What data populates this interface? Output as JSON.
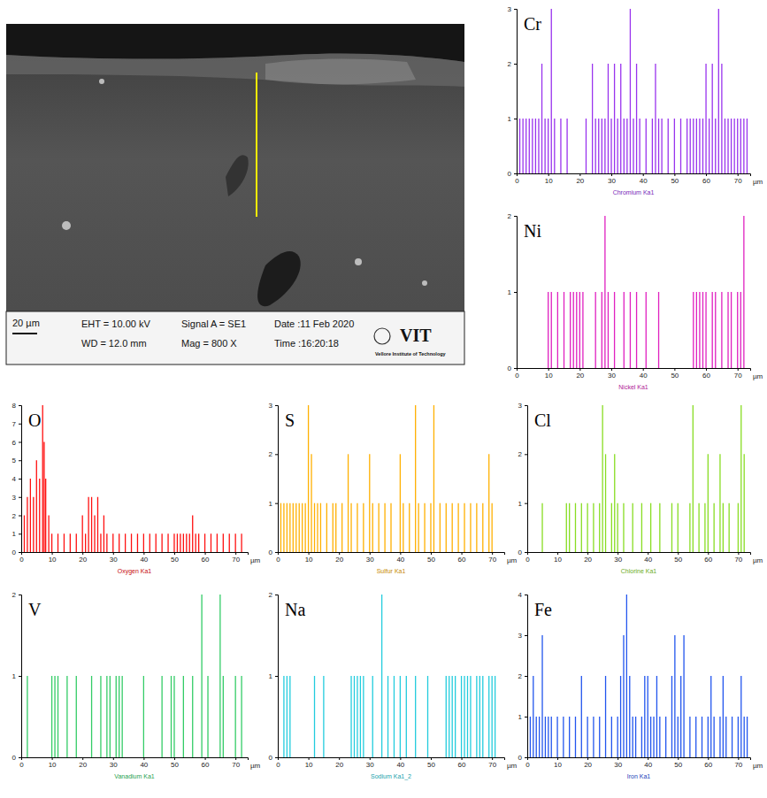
{
  "sem_image": {
    "scale_bar": "20 µm",
    "eht": "EHT = 10.00 kV",
    "wd": "WD = 12.0 mm",
    "signal": "Signal A = SE1",
    "mag": "Mag =  800 X",
    "date": "Date :11 Feb 2020",
    "time": "Time :16:20:18",
    "logo": "VIT",
    "institute": "Vellore Institute of Technology"
  },
  "chart_data": [
    {
      "type": "bar",
      "label": "Cr",
      "x_label": "Chromium Ka1",
      "x_unit": "µm",
      "color": "#9933ee",
      "x": [
        1,
        2,
        3,
        4,
        5,
        6,
        7,
        8,
        9,
        10,
        11,
        12,
        14,
        16,
        22,
        24,
        25,
        26,
        27,
        28,
        29,
        30,
        31,
        32,
        33,
        34,
        35,
        36,
        37,
        38,
        39,
        41,
        43,
        44,
        45,
        46,
        48,
        50,
        52,
        54,
        55,
        56,
        57,
        58,
        59,
        60,
        61,
        62,
        63,
        64,
        65,
        66,
        67,
        68,
        69,
        70,
        71,
        72,
        73
      ],
      "values": [
        1,
        1,
        1,
        1,
        1,
        1,
        1,
        2,
        1,
        1,
        3,
        1,
        1,
        1,
        1,
        2,
        1,
        1,
        1,
        1,
        2,
        1,
        2,
        1,
        2,
        1,
        1,
        3,
        1,
        2,
        1,
        1,
        1,
        2,
        1,
        1,
        1,
        1,
        1,
        1,
        1,
        1,
        1,
        1,
        1,
        2,
        1,
        2,
        1,
        3,
        2,
        1,
        1,
        1,
        1,
        1,
        1,
        1,
        1
      ],
      "xlim": [
        0,
        74
      ],
      "xticks": [
        0,
        10,
        20,
        30,
        40,
        50,
        60,
        70
      ],
      "ylim": [
        0,
        3
      ],
      "yticks": [
        0,
        1,
        2,
        3
      ]
    },
    {
      "type": "bar",
      "label": "Ni",
      "x_label": "Nickel Ka1",
      "x_unit": "µm",
      "color": "#e020c0",
      "x": [
        10,
        11,
        13,
        15,
        17,
        18,
        19,
        20,
        21,
        25,
        27,
        28,
        29,
        31,
        34,
        36,
        38,
        41,
        45,
        56,
        57,
        58,
        59,
        60,
        62,
        63,
        65,
        67,
        68,
        70,
        71,
        72
      ],
      "values": [
        1,
        1,
        1,
        1,
        1,
        1,
        1,
        1,
        1,
        1,
        1,
        2,
        1,
        1,
        1,
        1,
        1,
        1,
        1,
        1,
        1,
        1,
        1,
        1,
        1,
        1,
        1,
        1,
        1,
        1,
        1,
        2
      ],
      "xlim": [
        0,
        74
      ],
      "xticks": [
        0,
        10,
        20,
        30,
        40,
        50,
        60,
        70
      ],
      "ylim": [
        0,
        2
      ],
      "yticks": [
        0,
        1,
        2
      ]
    },
    {
      "type": "bar",
      "label": "O",
      "x_label": "Oxygen Ka1",
      "x_unit": "µm",
      "color": "#ff1010",
      "x": [
        1,
        2,
        3,
        4,
        5,
        6,
        7,
        7.5,
        8,
        9,
        10,
        12,
        14,
        16,
        18,
        20,
        21,
        22,
        23,
        24,
        25,
        26,
        27,
        28,
        30,
        32,
        34,
        36,
        38,
        40,
        42,
        44,
        46,
        48,
        50,
        51,
        52,
        53,
        54,
        55,
        56,
        57,
        58,
        60,
        62,
        64,
        66,
        68,
        70,
        72
      ],
      "values": [
        2,
        3,
        4,
        3,
        5,
        4,
        8,
        6,
        4,
        2,
        1,
        1,
        1,
        1,
        1,
        2,
        1,
        3,
        3,
        2,
        3,
        1,
        2,
        1,
        1,
        1,
        1,
        1,
        1,
        1,
        1,
        1,
        1,
        1,
        1,
        1,
        1,
        1,
        1,
        1,
        2,
        1,
        1,
        1,
        1,
        1,
        1,
        1,
        1,
        1
      ],
      "xlim": [
        0,
        74
      ],
      "xticks": [
        0,
        10,
        20,
        30,
        40,
        50,
        60,
        70
      ],
      "ylim": [
        0,
        8
      ],
      "yticks": [
        0,
        1,
        2,
        3,
        4,
        5,
        6,
        7,
        8
      ]
    },
    {
      "type": "bar",
      "label": "S",
      "x_label": "Sulfur Ka1",
      "x_unit": "µm",
      "color": "#ffb000",
      "x": [
        1,
        2,
        3,
        4,
        5,
        6,
        7,
        8,
        9,
        10,
        11,
        12,
        13,
        14,
        16,
        18,
        19,
        21,
        23,
        24,
        26,
        28,
        30,
        31,
        33,
        35,
        37,
        40,
        41,
        43,
        45,
        46,
        48,
        50,
        51,
        53,
        55,
        57,
        59,
        61,
        63,
        65,
        67,
        69,
        70
      ],
      "values": [
        1,
        1,
        1,
        1,
        1,
        1,
        1,
        1,
        1,
        3,
        2,
        1,
        1,
        1,
        1,
        1,
        1,
        1,
        2,
        1,
        1,
        1,
        2,
        1,
        1,
        1,
        1,
        2,
        1,
        1,
        3,
        1,
        1,
        1,
        3,
        1,
        1,
        1,
        1,
        1,
        1,
        1,
        1,
        2,
        1
      ],
      "xlim": [
        0,
        74
      ],
      "xticks": [
        0,
        10,
        20,
        30,
        40,
        50,
        60,
        70
      ],
      "ylim": [
        0,
        3
      ],
      "yticks": [
        0,
        1,
        2,
        3
      ]
    },
    {
      "type": "bar",
      "label": "Cl",
      "x_label": "Chlorine Ka1",
      "x_unit": "µm",
      "color": "#88dd22",
      "x": [
        5,
        13,
        14,
        16,
        18,
        20,
        22,
        24,
        25,
        26,
        28,
        29,
        30,
        32,
        35,
        38,
        41,
        44,
        48,
        50,
        54,
        55,
        57,
        59,
        60,
        62,
        64,
        65,
        67,
        70,
        71,
        72
      ],
      "values": [
        1,
        1,
        1,
        1,
        1,
        1,
        1,
        1,
        3,
        2,
        1,
        2,
        1,
        1,
        1,
        1,
        1,
        1,
        1,
        1,
        1,
        3,
        1,
        1,
        2,
        1,
        2,
        1,
        1,
        1,
        3,
        2
      ],
      "xlim": [
        0,
        74
      ],
      "xticks": [
        0,
        10,
        20,
        30,
        40,
        50,
        60,
        70
      ],
      "ylim": [
        0,
        3
      ],
      "yticks": [
        0,
        1,
        2,
        3
      ]
    },
    {
      "type": "bar",
      "label": "V",
      "x_label": "Vanadium Ka1",
      "x_unit": "µm",
      "color": "#33cc66",
      "x": [
        2,
        10,
        11,
        12,
        15,
        18,
        23,
        26,
        28,
        29,
        31,
        32,
        33,
        40,
        46,
        49,
        50,
        53,
        56,
        59,
        61,
        65,
        66,
        70,
        72
      ],
      "values": [
        1,
        1,
        1,
        1,
        1,
        1,
        1,
        1,
        1,
        1,
        1,
        1,
        1,
        1,
        1,
        1,
        1,
        1,
        1,
        2,
        1,
        2,
        1,
        1,
        1
      ],
      "xlim": [
        0,
        74
      ],
      "xticks": [
        0,
        10,
        20,
        30,
        40,
        50,
        60,
        70
      ],
      "ylim": [
        0,
        2
      ],
      "yticks": [
        0,
        1,
        2
      ]
    },
    {
      "type": "bar",
      "label": "Na",
      "x_label": "Sodium Ka1_2",
      "x_unit": "µm",
      "color": "#22ccdd",
      "x": [
        2,
        3,
        4,
        12,
        15,
        24,
        25,
        26,
        27,
        28,
        31,
        34,
        36,
        38,
        40,
        42,
        45,
        49,
        55,
        56,
        57,
        58,
        60,
        61,
        62,
        63,
        65,
        66,
        67,
        69,
        70,
        71
      ],
      "values": [
        1,
        1,
        1,
        1,
        1,
        1,
        1,
        1,
        1,
        1,
        1,
        2,
        1,
        1,
        1,
        1,
        1,
        1,
        1,
        1,
        1,
        1,
        1,
        1,
        1,
        1,
        1,
        1,
        1,
        1,
        1,
        1
      ],
      "xlim": [
        0,
        74
      ],
      "xticks": [
        0,
        10,
        20,
        30,
        40,
        50,
        60,
        70
      ],
      "ylim": [
        0,
        2
      ],
      "yticks": [
        0,
        1,
        2
      ]
    },
    {
      "type": "bar",
      "label": "Fe",
      "x_label": "Iron Ka1",
      "x_unit": "µm",
      "color": "#2255ee",
      "x": [
        1,
        2,
        3,
        4,
        5,
        6,
        7,
        8,
        10,
        12,
        14,
        16,
        18,
        20,
        22,
        24,
        26,
        28,
        30,
        31,
        32,
        33,
        34,
        35,
        36,
        38,
        39,
        40,
        41,
        42,
        43,
        44,
        46,
        48,
        49,
        50,
        51,
        52,
        54,
        56,
        58,
        60,
        61,
        62,
        64,
        65,
        66,
        68,
        70,
        71,
        72,
        73
      ],
      "values": [
        1,
        2,
        1,
        1,
        3,
        1,
        1,
        1,
        1,
        1,
        1,
        1,
        2,
        1,
        1,
        1,
        2,
        1,
        1,
        2,
        3,
        4,
        2,
        1,
        1,
        1,
        2,
        2,
        1,
        1,
        2,
        1,
        1,
        2,
        3,
        1,
        2,
        3,
        1,
        1,
        1,
        1,
        2,
        1,
        1,
        2,
        1,
        1,
        1,
        2,
        1,
        1
      ],
      "xlim": [
        0,
        74
      ],
      "xticks": [
        0,
        10,
        20,
        30,
        40,
        50,
        60,
        70
      ],
      "ylim": [
        0,
        4
      ],
      "yticks": [
        0,
        1,
        2,
        3,
        4
      ]
    }
  ]
}
